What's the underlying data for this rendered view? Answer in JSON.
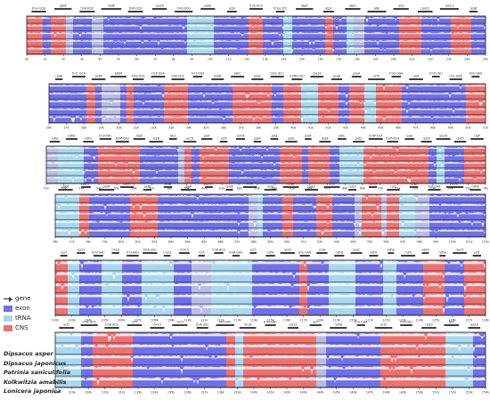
{
  "colors": {
    "exon": "#7070ee",
    "trna": "#a8d8f0",
    "cns": "#f07070",
    "intron": "#b8bce8",
    "profile": "#ffffff",
    "genebar": "#404040",
    "gap": "#e0dede"
  },
  "legend": [
    {
      "label": "gene",
      "kind": "arrow"
    },
    {
      "label": "exon",
      "kind": "exon"
    },
    {
      "label": "tRNA",
      "kind": "trna"
    },
    {
      "label": "CNS",
      "kind": "cns"
    }
  ],
  "species": [
    "Dipsacus asper",
    "Dipsacus japonicus",
    "Patrinia saniculifolia",
    "Kolkwitzia amabilis",
    "Lonicera japonica"
  ],
  "blocks": [
    {
      "genes": [
        "trnH-GUG",
        "psbA",
        "trnK-UUU",
        "matK",
        "trnK-UUU",
        "rps16",
        "trnQ-UUG",
        "psbK",
        "psbI",
        "trnS-GCU",
        "trnG-UCC",
        "atpA",
        "atpF",
        "atpH",
        "atpI",
        "rps2",
        "rpoC2",
        "rpoC1",
        "rpoB"
      ],
      "ticks": [
        "0k",
        "1k",
        "2k",
        "3k",
        "4k",
        "5k",
        "6k",
        "7k",
        "8k",
        "9k",
        "10k",
        "11k",
        "12k",
        "13k",
        "14k",
        "15k",
        "16k",
        "17k",
        "18k",
        "19k",
        "20k",
        "21k",
        "22k",
        "23k",
        "24k",
        "25k"
      ]
    },
    {
      "genes": [
        "rpoB",
        "trnC-GCA",
        "petN",
        "psbM",
        "trnD-GUC",
        "trnY-GUA",
        "trnE-UUC",
        "trnT-GGU",
        "psbD",
        "psbC",
        "psbZ",
        "trnG-GCC",
        "trnfM-CAU",
        "rps14",
        "psaB",
        "psaA",
        "ycf3",
        "trnS-GGA",
        "rps4",
        "trnT-UGU",
        "trnL-UAA",
        "trnF-GAA"
      ],
      "ticks": [
        "26k",
        "27k",
        "28k",
        "29k",
        "30k",
        "31k",
        "32k",
        "33k",
        "34k",
        "35k",
        "36k",
        "37k",
        "38k",
        "39k",
        "40k",
        "41k",
        "42k",
        "43k",
        "44k",
        "45k",
        "46k",
        "47k",
        "48k",
        "49k",
        "50k",
        "51k"
      ]
    },
    {
      "genes": [
        "ndhJ",
        "ndhK",
        "ndhC",
        "trnV-UAC",
        "trnM-CAU",
        "atpE",
        "atpB",
        "rbcL",
        "accD",
        "psaI",
        "ycf4",
        "cemA",
        "petA",
        "psbJ",
        "psbL",
        "psbF",
        "psbE",
        "petL",
        "petG",
        "trnW-CCA",
        "trnP-UGG",
        "psaJ",
        "rpl33",
        "rps18",
        "rpl20",
        "clpP"
      ],
      "ticks": [
        "51k",
        "52k",
        "53k",
        "54k",
        "55k",
        "56k",
        "57k",
        "58k",
        "59k",
        "60k",
        "61k",
        "62k",
        "63k",
        "64k",
        "65k",
        "66k",
        "67k",
        "68k",
        "69k",
        "70k",
        "71k",
        "72k",
        "73k",
        "74k",
        "75k",
        "76k"
      ]
    },
    {
      "genes": [
        "psbB",
        "psbT",
        "psbN",
        "psbH",
        "petB",
        "petD",
        "rpoA",
        "rps11",
        "rpl36",
        "infA",
        "rps8",
        "rpl14",
        "rpl16",
        "rps3",
        "rpl22",
        "rps19",
        "rpl2",
        "rpl23",
        "trnI-CAU",
        "ycf2",
        "ndhB"
      ],
      "ticks": [
        "76k",
        "77k",
        "78k",
        "79k",
        "80k",
        "81k",
        "82k",
        "83k",
        "84k",
        "85k",
        "86k",
        "87k",
        "88k",
        "89k",
        "90k",
        "91k",
        "92k",
        "93k",
        "94k",
        "95k",
        "96k",
        "97k",
        "98k",
        "99k",
        "100k",
        "101k",
        "102k"
      ]
    },
    {
      "genes": [
        "rps7",
        "rps12",
        "trnV-GAC",
        "rrn16",
        "trnI-GAU",
        "trnA-UGC",
        "rrn23",
        "rrn4.5",
        "rrn5",
        "trnR-ACG",
        "trnN-GUU",
        "ycf1",
        "ndhF",
        "rpl32",
        "trnL-UAG",
        "ccsA",
        "ndhD",
        "psaC",
        "ndhE",
        "ndhG",
        "ndhI",
        "ndhA",
        "ndhH",
        "rps15",
        "ycf1"
      ],
      "ticks": [
        "102k",
        "103k",
        "104k",
        "105k",
        "106k",
        "107k",
        "108k",
        "109k",
        "110k",
        "111k",
        "112k",
        "113k",
        "114k",
        "115k",
        "116k",
        "117k",
        "118k",
        "119k",
        "120k",
        "121k",
        "122k",
        "123k",
        "124k",
        "125k",
        "126k",
        "127k",
        "128k"
      ]
    },
    {
      "genes": [
        "ycf1",
        "trnN-GUU",
        "trnR-ACG",
        "rrn5",
        "rrn4.5",
        "rrn23",
        "trnA-UGC",
        "trnI-GAU",
        "rrn16",
        "trnV-GAC",
        "rps12",
        "rps7",
        "ndhB",
        "trnL-CAA",
        "ycf2",
        "trnI-CAU",
        "rpl23",
        "rpl2",
        "rps19"
      ],
      "ticks": [
        "128k",
        "129k",
        "130k",
        "131k",
        "132k",
        "133k",
        "134k",
        "135k",
        "136k",
        "137k",
        "138k",
        "139k",
        "140k",
        "141k",
        "142k",
        "143k",
        "144k",
        "145k",
        "146k",
        "147k",
        "148k",
        "149k",
        "150k",
        "151k",
        "152k",
        "153k",
        "154k"
      ]
    }
  ]
}
